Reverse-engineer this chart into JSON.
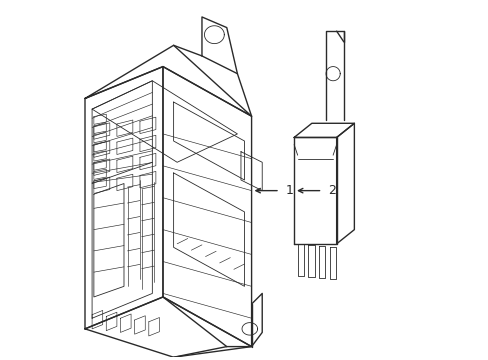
{
  "background_color": "#ffffff",
  "line_color": "#2a2a2a",
  "label1_text": "1",
  "label2_text": "2",
  "figsize": [
    4.89,
    3.6
  ],
  "dpi": 100,
  "lw_main": 1.0,
  "lw_detail": 0.6,
  "lw_thin": 0.45
}
